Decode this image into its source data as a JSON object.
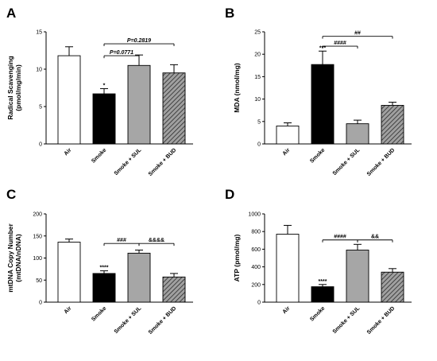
{
  "colors": {
    "air": "#ffffff",
    "smoke": "#000000",
    "sul": "#a6a6a6",
    "bud": "#8c8c8c",
    "axis": "#000000"
  },
  "chart_data": [
    {
      "type": "bar",
      "panel": "A",
      "ylabel": [
        "Radical Scavenging",
        "(pmol/mg/min)"
      ],
      "ylim": [
        0,
        15
      ],
      "yticks": [
        0,
        5,
        10,
        15
      ],
      "categories": [
        "Air",
        "Smoke",
        "Smoke + SUL",
        "Smoke + BUD"
      ],
      "values": [
        11.8,
        6.7,
        10.5,
        9.5
      ],
      "errors": [
        1.2,
        0.7,
        1.4,
        1.1
      ],
      "fills": [
        "air",
        "smoke",
        "sul",
        "bud"
      ],
      "hatched": [
        false,
        false,
        false,
        true
      ],
      "bar_labels": [
        "",
        "*",
        "",
        ""
      ],
      "brackets": [
        {
          "from": 1,
          "to": 3,
          "label": "P=0.2819",
          "level": 13.4
        },
        {
          "from": 1,
          "to": 2,
          "label": "P=0.0771",
          "level": 11.8
        }
      ]
    },
    {
      "type": "bar",
      "panel": "B",
      "ylabel": [
        "MDA (nmol/mg)"
      ],
      "ylim": [
        0,
        25
      ],
      "yticks": [
        0,
        5,
        10,
        15,
        20,
        25
      ],
      "categories": [
        "Air",
        "Smoke",
        "Smoke + SUL",
        "Smoke + BUD"
      ],
      "values": [
        4.0,
        17.7,
        4.5,
        8.6
      ],
      "errors": [
        0.7,
        3.0,
        0.8,
        0.7
      ],
      "fills": [
        "air",
        "smoke",
        "sul",
        "bud"
      ],
      "hatched": [
        false,
        false,
        false,
        true
      ],
      "bar_labels": [
        "",
        "***",
        "",
        ""
      ],
      "brackets": [
        {
          "from": 1,
          "to": 3,
          "label": "##",
          "level": 24.0
        },
        {
          "from": 1,
          "to": 2,
          "label": "####",
          "level": 21.8
        }
      ]
    },
    {
      "type": "bar",
      "panel": "C",
      "ylabel": [
        "mtDNA Copy Number",
        "(mtDNA/nDNA)"
      ],
      "ylim": [
        0,
        200
      ],
      "yticks": [
        0,
        50,
        100,
        150,
        200
      ],
      "categories": [
        "Air",
        "Smoke",
        "Smoke + SUL",
        "Smoke + BUD"
      ],
      "values": [
        136,
        65,
        111,
        57
      ],
      "errors": [
        7,
        6,
        7,
        8
      ],
      "fills": [
        "air",
        "smoke",
        "sul",
        "bud"
      ],
      "hatched": [
        false,
        false,
        false,
        true
      ],
      "bar_labels": [
        "",
        "****",
        "",
        ""
      ],
      "brackets": [
        {
          "from": 1,
          "to": 2,
          "label": "###",
          "level": 133
        },
        {
          "from": 2,
          "to": 3,
          "label": "&&&&",
          "level": 133
        }
      ]
    },
    {
      "type": "bar",
      "panel": "D",
      "ylabel": [
        "ATP (pmol/mg)"
      ],
      "ylim": [
        0,
        1000
      ],
      "yticks": [
        0,
        200,
        400,
        600,
        800,
        1000
      ],
      "categories": [
        "Air",
        "Smoke",
        "Smoke + SUL",
        "Smoke + BUD"
      ],
      "values": [
        770,
        175,
        590,
        340
      ],
      "errors": [
        100,
        25,
        65,
        40
      ],
      "fills": [
        "air",
        "smoke",
        "sul",
        "bud"
      ],
      "hatched": [
        false,
        false,
        false,
        true
      ],
      "bar_labels": [
        "",
        "****",
        "",
        ""
      ],
      "brackets": [
        {
          "from": 1,
          "to": 2,
          "label": "####",
          "level": 705
        },
        {
          "from": 2,
          "to": 3,
          "label": "&&",
          "level": 705
        }
      ]
    }
  ]
}
